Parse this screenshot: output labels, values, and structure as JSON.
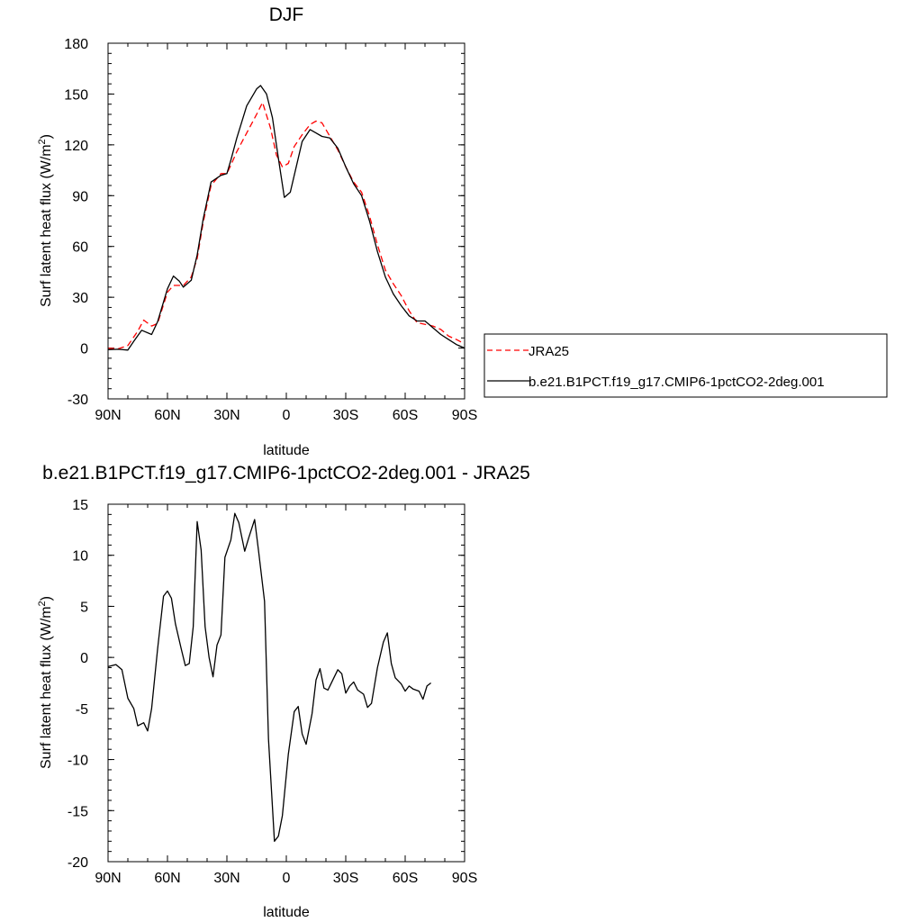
{
  "figure": {
    "top": {
      "title": "DJF",
      "ylabel_main": "Surf latent heat flux (W/m",
      "ylabel_sup": "2",
      "ylabel_close": ")",
      "xlabel": "latitude",
      "legend": {
        "obs_label": "JRA25",
        "model_label": "b.e21.B1PCT.f19_g17.CMIP6-1pctCO2-2deg.001"
      }
    },
    "bottom": {
      "title": "b.e21.B1PCT.f19_g17.CMIP6-1pctCO2-2deg.001 - JRA25",
      "ylabel_main": "Surf latent heat flux (W/m",
      "ylabel_sup": "2",
      "ylabel_close": ")",
      "xlabel": "latitude"
    }
  },
  "chart_data": [
    {
      "type": "line",
      "title": "DJF",
      "xlabel": "latitude",
      "ylabel": "Surf latent heat flux (W/m2)",
      "xlim": [
        -90,
        90
      ],
      "ylim": [
        -30,
        180
      ],
      "x_direction": "90N on left, 90S on right",
      "xticks": [
        {
          "value": -90,
          "label": "90N"
        },
        {
          "value": -60,
          "label": "60N"
        },
        {
          "value": -30,
          "label": "30N"
        },
        {
          "value": 0,
          "label": "0"
        },
        {
          "value": 30,
          "label": "30S"
        },
        {
          "value": 60,
          "label": "60S"
        },
        {
          "value": 90,
          "label": "90S"
        }
      ],
      "yticks": [
        {
          "value": -30,
          "label": "-30"
        },
        {
          "value": 0,
          "label": "0"
        },
        {
          "value": 30,
          "label": "30"
        },
        {
          "value": 60,
          "label": "60"
        },
        {
          "value": 90,
          "label": "90"
        },
        {
          "value": 120,
          "label": "120"
        },
        {
          "value": 150,
          "label": "150"
        },
        {
          "value": 180,
          "label": "180"
        }
      ],
      "legend_position": "right",
      "series": [
        {
          "name": "JRA25",
          "color": "#ff0000",
          "dash": "dashed",
          "points": [
            [
              -90,
              0
            ],
            [
              -85,
              -0.5
            ],
            [
              -80,
              1.5
            ],
            [
              -75,
              10
            ],
            [
              -72,
              16.5
            ],
            [
              -68,
              13
            ],
            [
              -65,
              14.5
            ],
            [
              -60,
              33
            ],
            [
              -57,
              37
            ],
            [
              -52,
              37
            ],
            [
              -48,
              42
            ],
            [
              -45,
              53
            ],
            [
              -42,
              74
            ],
            [
              -38,
              96
            ],
            [
              -33,
              103
            ],
            [
              -30,
              103
            ],
            [
              -28,
              108
            ],
            [
              -25,
              116
            ],
            [
              -20,
              127
            ],
            [
              -15,
              138
            ],
            [
              -12,
              145
            ],
            [
              -8,
              130
            ],
            [
              -5,
              114
            ],
            [
              -2,
              107
            ],
            [
              1,
              109
            ],
            [
              4,
              119
            ],
            [
              8,
              126
            ],
            [
              12,
              132
            ],
            [
              15,
              134
            ],
            [
              18,
              133
            ],
            [
              22,
              125
            ],
            [
              26,
              117
            ],
            [
              30,
              107
            ],
            [
              34,
              98
            ],
            [
              38,
              92
            ],
            [
              42,
              78
            ],
            [
              46,
              61
            ],
            [
              50,
              46
            ],
            [
              54,
              38
            ],
            [
              58,
              31
            ],
            [
              62,
              22
            ],
            [
              66,
              15
            ],
            [
              70,
              14
            ],
            [
              74,
              13
            ],
            [
              78,
              11
            ],
            [
              82,
              7
            ],
            [
              86,
              5
            ],
            [
              90,
              2.5
            ]
          ]
        },
        {
          "name": "b.e21.B1PCT.f19_g17.CMIP6-1pctCO2-2deg.001",
          "color": "#000000",
          "dash": "solid",
          "points": [
            [
              -90,
              -0.9
            ],
            [
              -85,
              -0.7
            ],
            [
              -80,
              -1.2
            ],
            [
              -77,
              4
            ],
            [
              -73,
              10.5
            ],
            [
              -68,
              8
            ],
            [
              -65,
              15.5
            ],
            [
              -60,
              35
            ],
            [
              -57,
              42.5
            ],
            [
              -54,
              39.5
            ],
            [
              -52,
              36
            ],
            [
              -48,
              40
            ],
            [
              -45,
              55
            ],
            [
              -42,
              76
            ],
            [
              -38,
              98
            ],
            [
              -33,
              102
            ],
            [
              -30,
              103
            ],
            [
              -28,
              111
            ],
            [
              -25,
              124
            ],
            [
              -20,
              143
            ],
            [
              -15,
              153
            ],
            [
              -13,
              155
            ],
            [
              -10,
              150
            ],
            [
              -7,
              136
            ],
            [
              -4,
              112
            ],
            [
              -1,
              89
            ],
            [
              2,
              92
            ],
            [
              5,
              107
            ],
            [
              8,
              122
            ],
            [
              12,
              129
            ],
            [
              15,
              127
            ],
            [
              18,
              125
            ],
            [
              22,
              124
            ],
            [
              26,
              118
            ],
            [
              30,
              107
            ],
            [
              34,
              97
            ],
            [
              38,
              90
            ],
            [
              42,
              75
            ],
            [
              46,
              57
            ],
            [
              50,
              42
            ],
            [
              54,
              32
            ],
            [
              58,
              25
            ],
            [
              62,
              19
            ],
            [
              66,
              16
            ],
            [
              70,
              16
            ],
            [
              74,
              12
            ],
            [
              78,
              8
            ],
            [
              82,
              5
            ],
            [
              86,
              2
            ],
            [
              90,
              0
            ]
          ]
        }
      ]
    },
    {
      "type": "line",
      "title": "b.e21.B1PCT.f19_g17.CMIP6-1pctCO2-2deg.001 - JRA25",
      "xlabel": "latitude",
      "ylabel": "Surf latent heat flux (W/m2)",
      "xlim": [
        -90,
        90
      ],
      "ylim": [
        -20,
        15
      ],
      "x_direction": "90N on left, 90S on right",
      "xticks": [
        {
          "value": -90,
          "label": "90N"
        },
        {
          "value": -60,
          "label": "60N"
        },
        {
          "value": -30,
          "label": "30N"
        },
        {
          "value": 0,
          "label": "0"
        },
        {
          "value": 30,
          "label": "30S"
        },
        {
          "value": 60,
          "label": "60S"
        },
        {
          "value": 90,
          "label": "90S"
        }
      ],
      "yticks": [
        {
          "value": -20,
          "label": "-20"
        },
        {
          "value": -15,
          "label": "-15"
        },
        {
          "value": -10,
          "label": "-10"
        },
        {
          "value": -5,
          "label": "-5"
        },
        {
          "value": 0,
          "label": "0"
        },
        {
          "value": 5,
          "label": "5"
        },
        {
          "value": 10,
          "label": "10"
        },
        {
          "value": 15,
          "label": "15"
        }
      ],
      "series": [
        {
          "color": "#000000",
          "dash": "solid",
          "points": [
            [
              -90,
              -0.9
            ],
            [
              -86,
              -0.7
            ],
            [
              -83,
              -1.2
            ],
            [
              -80,
              -4
            ],
            [
              -77,
              -5
            ],
            [
              -75,
              -6.7
            ],
            [
              -72,
              -6.4
            ],
            [
              -70,
              -7.2
            ],
            [
              -68,
              -5
            ],
            [
              -65,
              0.8
            ],
            [
              -62,
              6.0
            ],
            [
              -60,
              6.5
            ],
            [
              -58,
              5.8
            ],
            [
              -56,
              3.3
            ],
            [
              -53,
              0.8
            ],
            [
              -51,
              -0.8
            ],
            [
              -49,
              -0.6
            ],
            [
              -47,
              3
            ],
            [
              -45,
              13.3
            ],
            [
              -43,
              10.5
            ],
            [
              -41,
              3
            ],
            [
              -39,
              0
            ],
            [
              -37,
              -1.9
            ],
            [
              -35,
              1.2
            ],
            [
              -33,
              2.2
            ],
            [
              -31,
              9.8
            ],
            [
              -28,
              11.5
            ],
            [
              -26,
              14.1
            ],
            [
              -24,
              13.2
            ],
            [
              -21,
              10.4
            ],
            [
              -19,
              11.7
            ],
            [
              -16,
              13.5
            ],
            [
              -14,
              10.4
            ],
            [
              -11,
              5.5
            ],
            [
              -9,
              -8
            ],
            [
              -6,
              -18
            ],
            [
              -4,
              -17.5
            ],
            [
              -2,
              -15.5
            ],
            [
              1,
              -9.5
            ],
            [
              4,
              -5.3
            ],
            [
              6,
              -4.8
            ],
            [
              8,
              -7.5
            ],
            [
              10,
              -8.5
            ],
            [
              13,
              -5.5
            ],
            [
              15,
              -2.2
            ],
            [
              17,
              -1.1
            ],
            [
              19,
              -3
            ],
            [
              21,
              -3.2
            ],
            [
              24,
              -2
            ],
            [
              26,
              -1.2
            ],
            [
              28,
              -1.6
            ],
            [
              30,
              -3.5
            ],
            [
              32,
              -2.8
            ],
            [
              34,
              -2.4
            ],
            [
              36,
              -3.2
            ],
            [
              39,
              -3.6
            ],
            [
              41,
              -4.9
            ],
            [
              43,
              -4.5
            ],
            [
              46,
              -1
            ],
            [
              49,
              1.5
            ],
            [
              51,
              2.4
            ],
            [
              53,
              -0.6
            ],
            [
              55,
              -2
            ],
            [
              58,
              -2.6
            ],
            [
              60,
              -3.3
            ],
            [
              62,
              -2.8
            ],
            [
              64,
              -3.1
            ],
            [
              67,
              -3.3
            ],
            [
              69,
              -4.1
            ],
            [
              71,
              -2.8
            ],
            [
              73,
              -2.5
            ]
          ]
        }
      ]
    }
  ]
}
